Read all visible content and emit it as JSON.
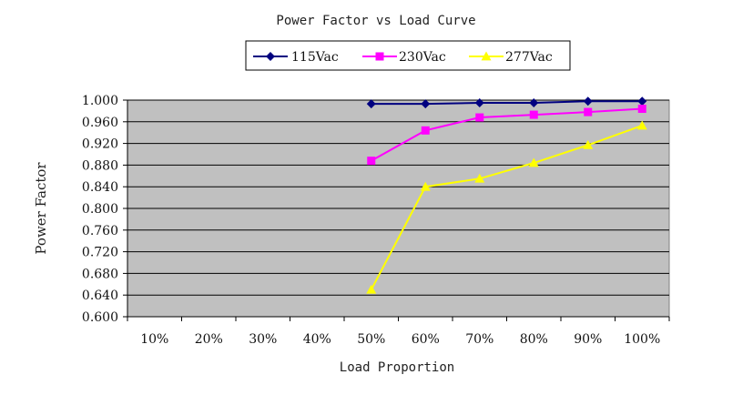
{
  "chart_data": {
    "type": "line",
    "title": "Power Factor vs Load Curve",
    "xlabel": "Load Proportion",
    "ylabel": "Power Factor",
    "categories": [
      "10%",
      "20%",
      "30%",
      "40%",
      "50%",
      "60%",
      "70%",
      "80%",
      "90%",
      "100%"
    ],
    "y_ticks": [
      "0.600",
      "0.640",
      "0.680",
      "0.720",
      "0.760",
      "0.800",
      "0.840",
      "0.880",
      "0.920",
      "0.960",
      "1.000"
    ],
    "ylim": [
      0.6,
      1.0
    ],
    "grid": "horizontal",
    "plot_background": "#c0c0c0",
    "legend_position": "top-center",
    "series": [
      {
        "name": "115Vac",
        "color": "#000080",
        "marker": "diamond",
        "values": [
          null,
          null,
          null,
          null,
          0.993,
          0.993,
          0.995,
          0.995,
          0.998,
          0.998
        ]
      },
      {
        "name": "230Vac",
        "color": "#ff00ff",
        "marker": "square",
        "values": [
          null,
          null,
          null,
          null,
          0.888,
          0.944,
          0.968,
          0.973,
          0.978,
          0.984
        ]
      },
      {
        "name": "277Vac",
        "color": "#ffff00",
        "marker": "triangle",
        "values": [
          null,
          null,
          null,
          null,
          0.65,
          0.84,
          0.855,
          0.884,
          0.917,
          0.953
        ]
      }
    ]
  }
}
